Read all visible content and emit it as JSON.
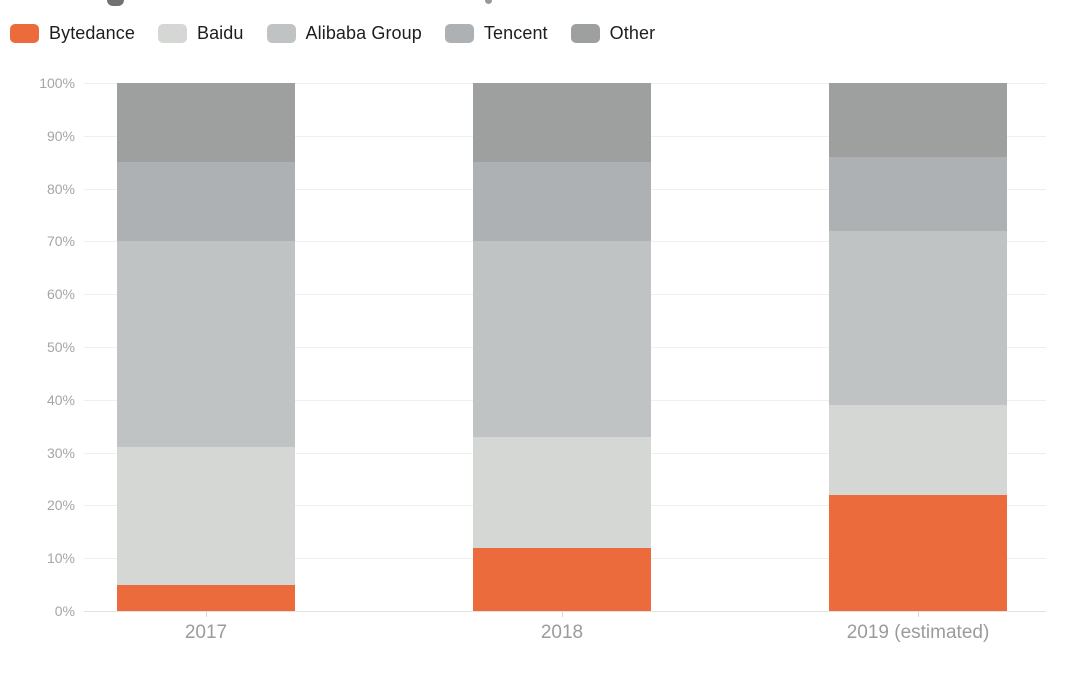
{
  "chart_data": {
    "type": "bar",
    "stacked": true,
    "unit": "%",
    "categories": [
      "2017",
      "2018",
      "2019 (estimated)"
    ],
    "series": [
      {
        "name": "Bytedance",
        "color": "#EC6B3D",
        "values": [
          5,
          12,
          22
        ]
      },
      {
        "name": "Baidu",
        "color": "#D5D7D5",
        "values": [
          26,
          21,
          17
        ]
      },
      {
        "name": "Alibaba Group",
        "color": "#C0C3C4",
        "values": [
          39,
          37,
          33
        ]
      },
      {
        "name": "Tencent",
        "color": "#AEB1B3",
        "values": [
          15,
          15,
          14
        ]
      },
      {
        "name": "Other",
        "color": "#9DA09F",
        "values": [
          15,
          15,
          14
        ]
      }
    ],
    "ylim": [
      0,
      100
    ],
    "y_tick_step": 10,
    "y_tick_labels": [
      "0%",
      "10%",
      "20%",
      "30%",
      "40%",
      "50%",
      "60%",
      "70%",
      "80%",
      "90%",
      "100%"
    ],
    "grid": true,
    "legend_position": "top-left"
  }
}
